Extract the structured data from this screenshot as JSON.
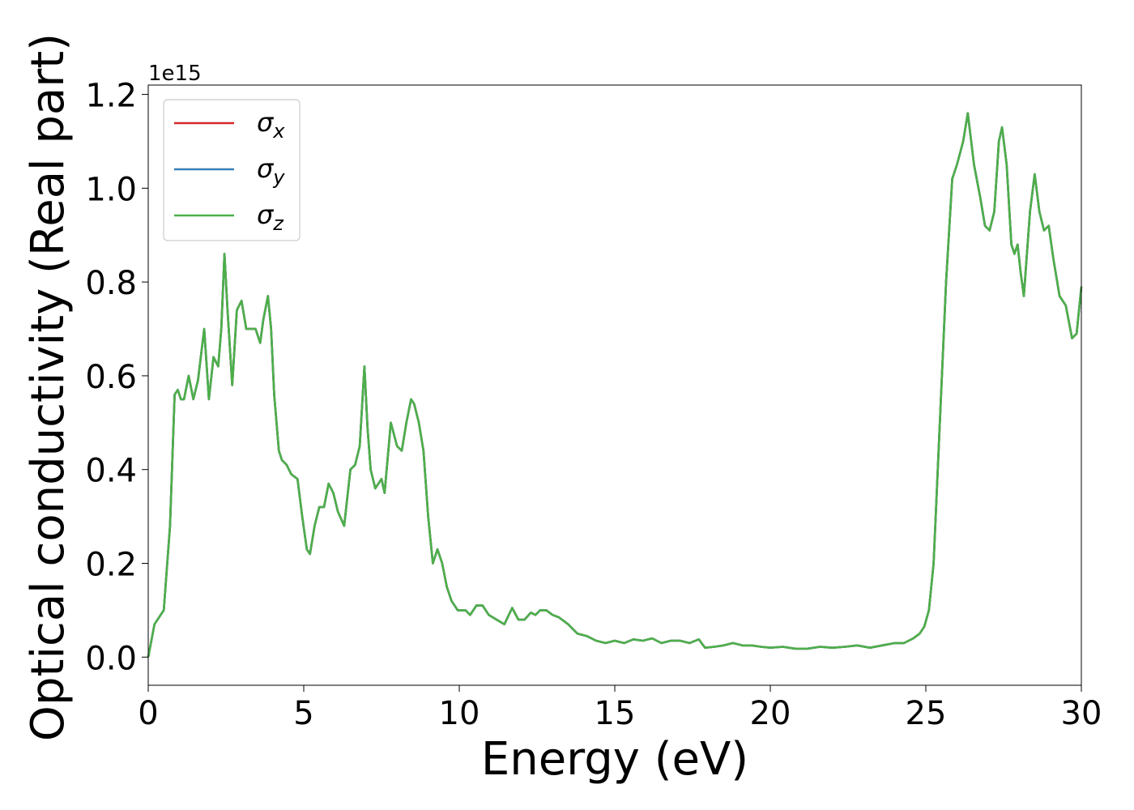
{
  "chart_data": {
    "type": "line",
    "xlabel": "Energy (eV)",
    "ylabel": "Optical conductivity (Real part)",
    "y_offset_label": "1e15",
    "xlim": [
      0,
      30
    ],
    "ylim": [
      -0.06,
      1.22
    ],
    "xticks": [
      0,
      5,
      10,
      15,
      20,
      25,
      30
    ],
    "xtick_labels": [
      "0",
      "5",
      "10",
      "15",
      "20",
      "25",
      "30"
    ],
    "yticks": [
      0.0,
      0.2,
      0.4,
      0.6,
      0.8,
      1.0,
      1.2
    ],
    "ytick_labels": [
      "0.0",
      "0.2",
      "0.4",
      "0.6",
      "0.8",
      "1.0",
      "1.2"
    ],
    "grid": false,
    "legend_position": "top-left",
    "series": [
      {
        "name": "σx",
        "color": "#d62728"
      },
      {
        "name": "σy",
        "color": "#377eb8"
      },
      {
        "name": "σz",
        "color": "#4daf4a"
      }
    ],
    "x": [
      0,
      0.2,
      0.5,
      0.7,
      0.85,
      0.95,
      1.05,
      1.15,
      1.3,
      1.45,
      1.6,
      1.8,
      1.95,
      2.1,
      2.25,
      2.35,
      2.45,
      2.55,
      2.7,
      2.85,
      3.0,
      3.15,
      3.3,
      3.45,
      3.6,
      3.7,
      3.85,
      3.95,
      4.05,
      4.2,
      4.3,
      4.45,
      4.6,
      4.8,
      4.95,
      5.1,
      5.2,
      5.35,
      5.5,
      5.65,
      5.8,
      5.95,
      6.1,
      6.3,
      6.5,
      6.65,
      6.8,
      6.95,
      7.05,
      7.15,
      7.3,
      7.5,
      7.6,
      7.8,
      8.0,
      8.15,
      8.3,
      8.45,
      8.55,
      8.7,
      8.85,
      9.0,
      9.15,
      9.3,
      9.45,
      9.6,
      9.75,
      9.95,
      10.2,
      10.35,
      10.55,
      10.75,
      10.95,
      11.2,
      11.45,
      11.7,
      11.9,
      12.1,
      12.3,
      12.45,
      12.6,
      12.8,
      13.0,
      13.2,
      13.5,
      13.8,
      14.1,
      14.4,
      14.7,
      15.0,
      15.3,
      15.6,
      15.9,
      16.2,
      16.5,
      16.8,
      17.1,
      17.4,
      17.7,
      17.9,
      18.2,
      18.5,
      18.8,
      19.1,
      19.4,
      19.7,
      20.0,
      20.4,
      20.8,
      21.2,
      21.6,
      22.0,
      22.4,
      22.8,
      23.2,
      23.6,
      24.0,
      24.3,
      24.6,
      24.8,
      24.95,
      25.1,
      25.25,
      25.45,
      25.65,
      25.85,
      26.0,
      26.2,
      26.35,
      26.55,
      26.75,
      26.9,
      27.05,
      27.2,
      27.35,
      27.45,
      27.6,
      27.75,
      27.85,
      27.95,
      28.05,
      28.15,
      28.35,
      28.5,
      28.65,
      28.8,
      28.95,
      29.1,
      29.3,
      29.5,
      29.7,
      29.85,
      30.0
    ],
    "y": [
      0.0,
      0.07,
      0.1,
      0.28,
      0.56,
      0.57,
      0.55,
      0.55,
      0.6,
      0.55,
      0.59,
      0.7,
      0.55,
      0.64,
      0.62,
      0.7,
      0.86,
      0.74,
      0.58,
      0.74,
      0.76,
      0.7,
      0.7,
      0.7,
      0.67,
      0.72,
      0.77,
      0.7,
      0.56,
      0.44,
      0.42,
      0.41,
      0.39,
      0.38,
      0.3,
      0.23,
      0.22,
      0.28,
      0.32,
      0.32,
      0.37,
      0.35,
      0.31,
      0.28,
      0.4,
      0.41,
      0.45,
      0.62,
      0.49,
      0.4,
      0.36,
      0.38,
      0.35,
      0.5,
      0.45,
      0.44,
      0.5,
      0.55,
      0.54,
      0.5,
      0.44,
      0.3,
      0.2,
      0.23,
      0.2,
      0.15,
      0.12,
      0.1,
      0.1,
      0.09,
      0.11,
      0.11,
      0.09,
      0.08,
      0.07,
      0.105,
      0.08,
      0.08,
      0.095,
      0.09,
      0.1,
      0.1,
      0.09,
      0.085,
      0.07,
      0.05,
      0.045,
      0.035,
      0.03,
      0.035,
      0.03,
      0.038,
      0.035,
      0.04,
      0.03,
      0.035,
      0.035,
      0.03,
      0.038,
      0.02,
      0.022,
      0.025,
      0.03,
      0.025,
      0.025,
      0.022,
      0.02,
      0.022,
      0.018,
      0.018,
      0.022,
      0.02,
      0.022,
      0.025,
      0.02,
      0.025,
      0.03,
      0.03,
      0.04,
      0.05,
      0.065,
      0.1,
      0.2,
      0.5,
      0.8,
      1.02,
      1.05,
      1.1,
      1.16,
      1.05,
      0.98,
      0.92,
      0.91,
      0.95,
      1.1,
      1.13,
      1.05,
      0.88,
      0.86,
      0.88,
      0.82,
      0.77,
      0.95,
      1.03,
      0.95,
      0.91,
      0.92,
      0.85,
      0.77,
      0.75,
      0.68,
      0.69,
      0.79
    ]
  }
}
